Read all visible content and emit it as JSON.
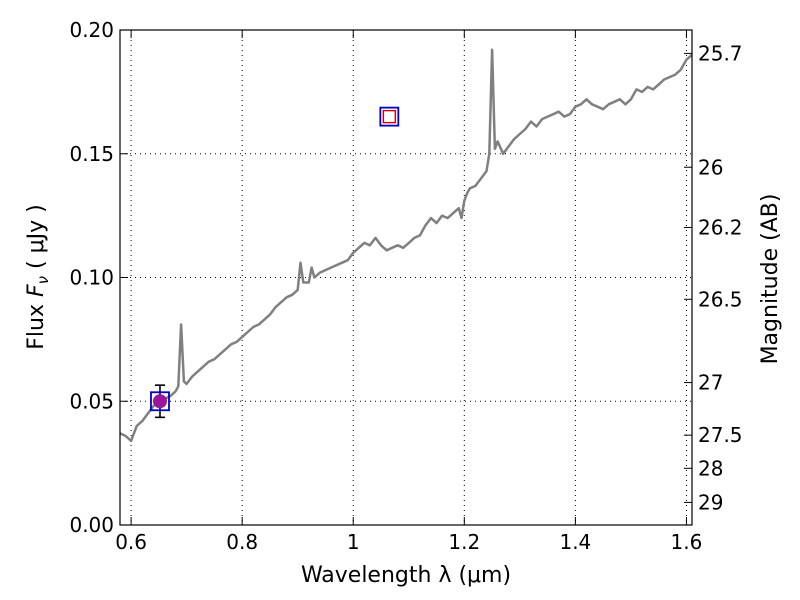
{
  "chart_data": {
    "type": "line",
    "xlabel": "Wavelength  λ (μm)",
    "ylabel_prefix": "Flux  ",
    "ylabel_symbol": "F",
    "ylabel_sub": "ν",
    "ylabel_suffix": "  ( μJy )",
    "y2label": "Magnitude (AB)",
    "xlim": [
      0.58,
      1.61
    ],
    "ylim": [
      0.0,
      0.2
    ],
    "grid": true,
    "x_ticks": [
      0.6,
      0.8,
      1.0,
      1.2,
      1.4,
      1.6
    ],
    "x_tick_labels": [
      "0.6",
      "0.8",
      "1",
      "1.2",
      "1.4",
      "1.6"
    ],
    "y_ticks": [
      0.0,
      0.05,
      0.1,
      0.15,
      0.2
    ],
    "y_tick_labels": [
      "0.00",
      "0.05",
      "0.10",
      "0.15",
      "0.20"
    ],
    "mag_ticks": [
      25.7,
      26,
      26.2,
      26.5,
      27,
      27.5,
      28,
      29
    ],
    "mag_tick_labels": [
      "25.7",
      "26",
      "26.2",
      "26.5",
      "27",
      "27.5",
      "28",
      "29"
    ],
    "series": [
      {
        "color": "#808080",
        "x": [
          0.58,
          0.59,
          0.6,
          0.61,
          0.62,
          0.63,
          0.64,
          0.65,
          0.66,
          0.67,
          0.68,
          0.685,
          0.69,
          0.695,
          0.7,
          0.71,
          0.72,
          0.73,
          0.74,
          0.75,
          0.76,
          0.77,
          0.78,
          0.79,
          0.8,
          0.81,
          0.82,
          0.83,
          0.84,
          0.85,
          0.86,
          0.87,
          0.88,
          0.89,
          0.9,
          0.905,
          0.91,
          0.92,
          0.925,
          0.93,
          0.94,
          0.95,
          0.96,
          0.97,
          0.98,
          0.99,
          1.0,
          1.01,
          1.02,
          1.03,
          1.04,
          1.05,
          1.06,
          1.07,
          1.08,
          1.09,
          1.1,
          1.11,
          1.12,
          1.13,
          1.14,
          1.15,
          1.16,
          1.17,
          1.18,
          1.19,
          1.195,
          1.2,
          1.205,
          1.21,
          1.22,
          1.23,
          1.24,
          1.245,
          1.25,
          1.255,
          1.26,
          1.27,
          1.28,
          1.29,
          1.3,
          1.31,
          1.32,
          1.33,
          1.34,
          1.35,
          1.36,
          1.37,
          1.38,
          1.39,
          1.4,
          1.41,
          1.42,
          1.43,
          1.44,
          1.45,
          1.46,
          1.47,
          1.48,
          1.49,
          1.5,
          1.51,
          1.52,
          1.53,
          1.54,
          1.55,
          1.56,
          1.57,
          1.58,
          1.59,
          1.6,
          1.61
        ],
        "y": [
          0.037,
          0.036,
          0.034,
          0.04,
          0.042,
          0.045,
          0.048,
          0.05,
          0.051,
          0.052,
          0.054,
          0.056,
          0.081,
          0.058,
          0.057,
          0.06,
          0.062,
          0.064,
          0.066,
          0.067,
          0.069,
          0.071,
          0.073,
          0.074,
          0.076,
          0.078,
          0.08,
          0.081,
          0.083,
          0.085,
          0.088,
          0.09,
          0.092,
          0.093,
          0.095,
          0.106,
          0.098,
          0.098,
          0.104,
          0.1,
          0.102,
          0.103,
          0.104,
          0.105,
          0.106,
          0.107,
          0.11,
          0.112,
          0.114,
          0.113,
          0.116,
          0.113,
          0.111,
          0.112,
          0.113,
          0.112,
          0.114,
          0.116,
          0.117,
          0.121,
          0.124,
          0.122,
          0.125,
          0.124,
          0.126,
          0.128,
          0.124,
          0.131,
          0.134,
          0.136,
          0.137,
          0.14,
          0.143,
          0.15,
          0.192,
          0.152,
          0.155,
          0.15,
          0.153,
          0.156,
          0.158,
          0.16,
          0.163,
          0.161,
          0.164,
          0.165,
          0.166,
          0.167,
          0.165,
          0.166,
          0.169,
          0.17,
          0.172,
          0.17,
          0.169,
          0.168,
          0.17,
          0.171,
          0.172,
          0.17,
          0.172,
          0.176,
          0.175,
          0.177,
          0.176,
          0.178,
          0.18,
          0.181,
          0.182,
          0.184,
          0.188,
          0.19
        ]
      }
    ],
    "points": [
      {
        "x": 0.652,
        "y": 0.05,
        "yerr": 0.0065,
        "fill": "#9b169b",
        "box_color": "#0000cc",
        "marker": "filled-circle"
      },
      {
        "x": 1.065,
        "y": 0.165,
        "yerr": 0,
        "fill": "#ffffff",
        "edge": "#cc0000",
        "box_color": "#0000cc",
        "marker": "open-square"
      }
    ]
  }
}
